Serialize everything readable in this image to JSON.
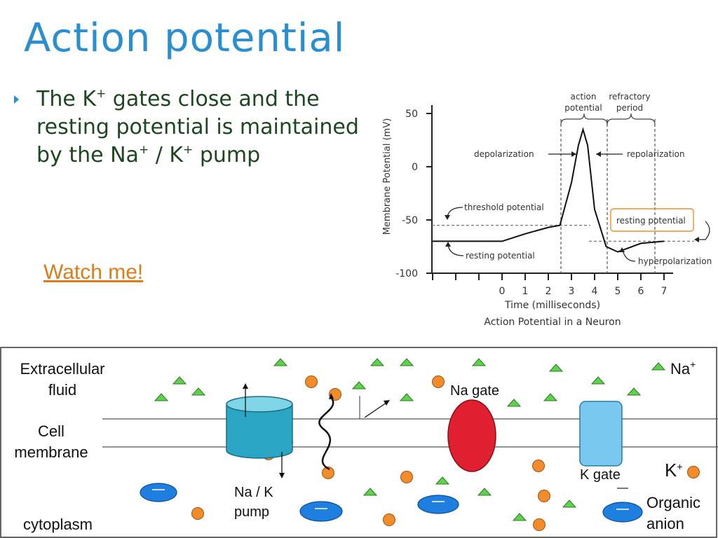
{
  "slide": {
    "title": "Action potential",
    "bullet": {
      "part1": "The K",
      "sup1": "+",
      "part2": " gates close and the resting potential is maintained by the Na",
      "sup2": "+",
      "part3": " / K",
      "sup3": "+",
      "part4": " pump"
    },
    "link_text": "Watch me!"
  },
  "graph": {
    "ylabel": "Membrane Potential (mV)",
    "xlabel": "Time (milliseconds)",
    "caption": "Action Potential in a Neuron",
    "yticks": [
      "50",
      "0",
      "-50",
      "-100"
    ],
    "xticks": [
      "0",
      "1",
      "2",
      "3",
      "4",
      "5",
      "6",
      "7"
    ],
    "labels": {
      "action_potential_1": "action",
      "action_potential_2": "potential",
      "refractory_1": "refractory",
      "refractory_2": "period",
      "depolarization": "depolarization",
      "repolarization": "repolarization",
      "threshold": "threshold potential",
      "resting_left": "resting potential",
      "resting_right": "resting potential",
      "hyperpolarization": "hyperpolarization"
    }
  },
  "chart_data": {
    "type": "line",
    "x": [
      -3,
      0,
      1,
      2,
      2.5,
      3,
      3.3,
      3.5,
      3.7,
      4,
      4.5,
      5,
      6,
      7
    ],
    "y": [
      -70,
      -70,
      -63,
      -57,
      -55,
      -15,
      20,
      35,
      20,
      -40,
      -75,
      -80,
      -72,
      -70
    ],
    "xlim": [
      -3.2,
      7.5
    ],
    "ylim": [
      -100,
      55
    ],
    "threshold_mV": -55,
    "resting_mV": -70
  },
  "diagram": {
    "labels": {
      "extracellular_1": "Extracellular",
      "extracellular_2": "fluid",
      "membrane_1": "Cell",
      "membrane_2": "membrane",
      "cytoplasm": "cytoplasm",
      "na_gate": "Na gate",
      "k_gate": "K gate",
      "pump_1": "Na / K",
      "pump_2": "pump",
      "na_legend": "Na",
      "na_sup": "+",
      "k_legend": "K",
      "k_sup": "+",
      "anion_1": "Organic",
      "anion_2": "anion"
    },
    "colors": {
      "na_ion": "#5cd34a",
      "k_ion": "#f28c28",
      "anion": "#1f7fe0",
      "na_gate": "#e02030",
      "k_gate": "#79c8f0",
      "pump": "#2aa6c4"
    }
  }
}
